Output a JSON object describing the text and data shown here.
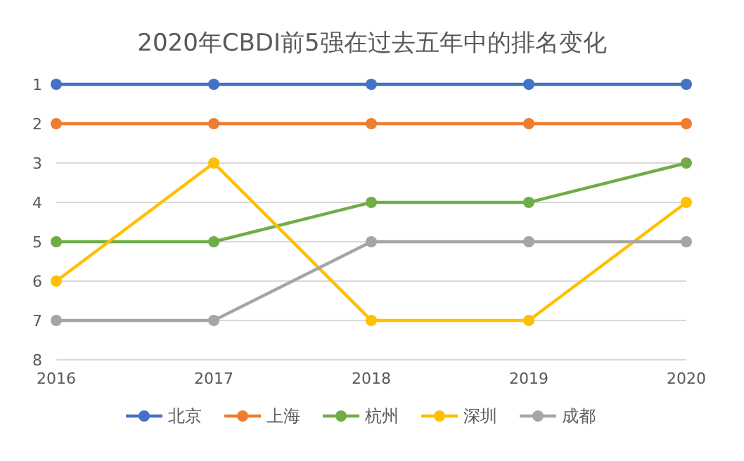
{
  "chart_data": {
    "type": "line",
    "title": "2020年CBDI前5强在过去五年中的排名变化",
    "categories": [
      "2016",
      "2017",
      "2018",
      "2019",
      "2020"
    ],
    "series": [
      {
        "name": "北京",
        "color": "#4472c4",
        "values": [
          1,
          1,
          1,
          1,
          1
        ]
      },
      {
        "name": "上海",
        "color": "#ed7d31",
        "values": [
          2,
          2,
          2,
          2,
          2
        ]
      },
      {
        "name": "杭州",
        "color": "#70ad47",
        "values": [
          5,
          5,
          4,
          4,
          3
        ]
      },
      {
        "name": "深圳",
        "color": "#ffc000",
        "values": [
          6,
          3,
          7,
          7,
          4
        ]
      },
      {
        "name": "成都",
        "color": "#a5a5a5",
        "values": [
          7,
          7,
          5,
          5,
          5
        ]
      }
    ],
    "ylim": [
      8,
      1
    ],
    "yticks": [
      1,
      2,
      3,
      4,
      5,
      6,
      7,
      8
    ],
    "grid": "y",
    "legend": "bottom",
    "marker": "circle",
    "line_style": "solid"
  }
}
